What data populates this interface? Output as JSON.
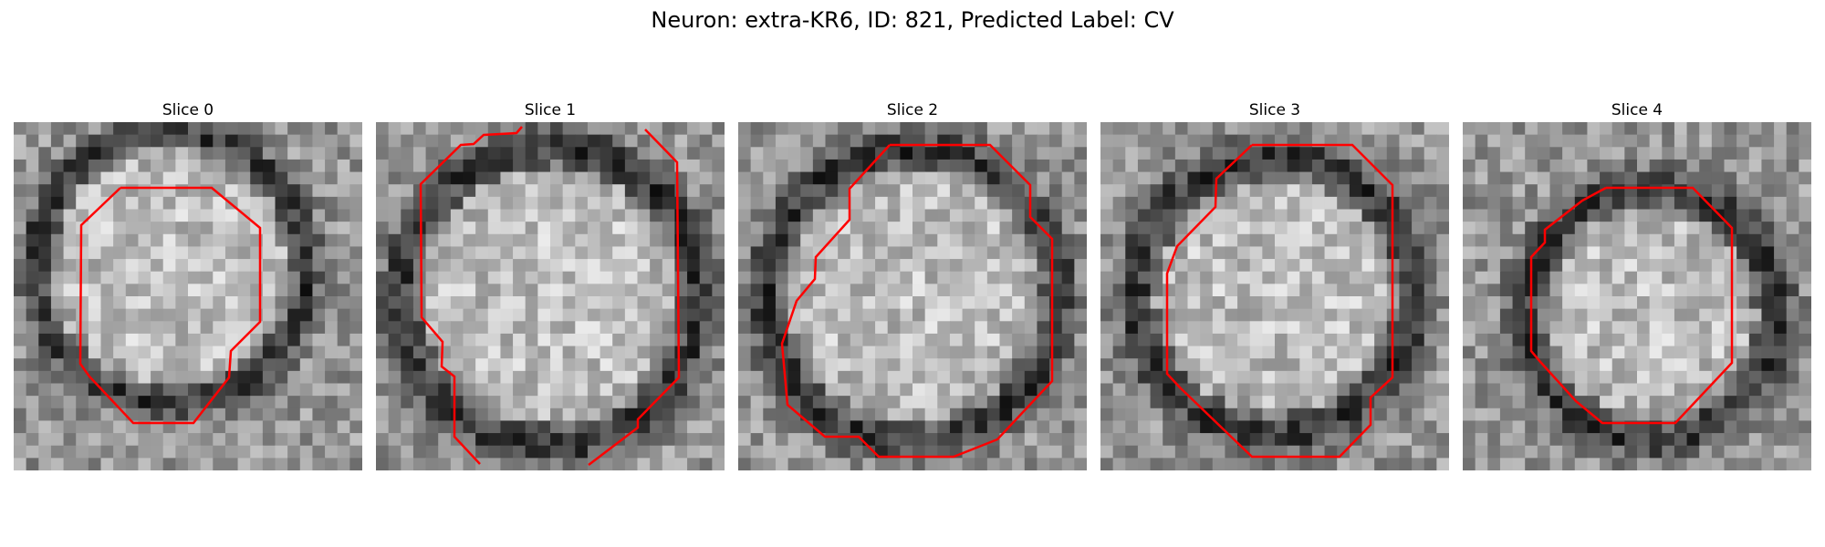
{
  "figure": {
    "title": "Neuron: extra-KR6, ID: 821, Predicted Label: CV"
  },
  "panels": [
    {
      "title": "Slice 0"
    },
    {
      "title": "Slice 1"
    },
    {
      "title": "Slice 2"
    },
    {
      "title": "Slice 3"
    },
    {
      "title": "Slice 4"
    }
  ],
  "colors": {
    "contour": "#ff0000",
    "background": "#ffffff"
  }
}
